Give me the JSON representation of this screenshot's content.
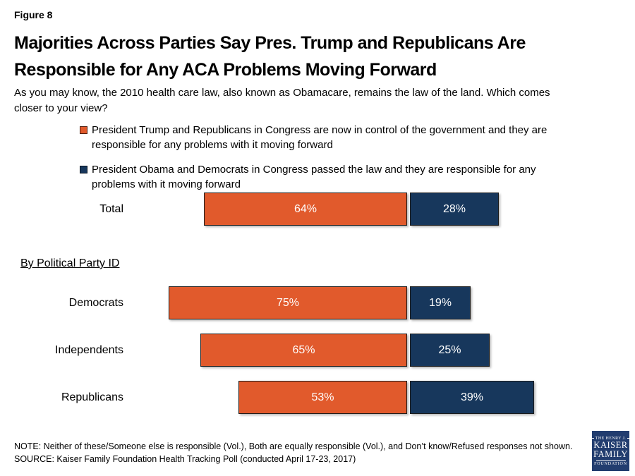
{
  "figure_label": "Figure 8",
  "title": "Majorities Across Parties Say Pres. Trump and Republicans Are Responsible for Any ACA Problems Moving Forward",
  "question": "As you may know, the 2010 health care law, also known as Obamacare, remains the law of the land. Which comes closer to your view?",
  "colors": {
    "trump_orange": "#E15A2C",
    "obama_navy": "#17375C",
    "logo_navy": "#223D6F",
    "bar_border": "#1C1C1C",
    "value_label": "#FFFFFF"
  },
  "legend": {
    "items": [
      {
        "key": "trump-republicans",
        "label": "President Trump and Republicans in Congress are now in control of the government and they are responsible for any problems with it moving forward",
        "color": "#E15A2C"
      },
      {
        "key": "obama-democrats",
        "label": "President Obama and Democrats in Congress passed the law and they are responsible for any problems with it moving forward",
        "color": "#17375C"
      }
    ]
  },
  "section_label": "By Political Party ID",
  "chart_data": {
    "type": "bar",
    "orientation": "horizontal",
    "title": "Majorities Across Parties Say Pres. Trump and Republicans Are Responsible for Any ACA Problems Moving Forward",
    "categories": [
      "Total",
      "Democrats",
      "Independents",
      "Republicans"
    ],
    "series": [
      {
        "key": "trump-republicans",
        "name": "President Trump and Republicans in Congress are responsible",
        "color": "#E15A2C",
        "values": [
          64,
          75,
          65,
          53
        ]
      },
      {
        "key": "obama-democrats",
        "name": "President Obama and Democrats in Congress are responsible",
        "color": "#17375C",
        "values": [
          28,
          19,
          25,
          39
        ]
      }
    ],
    "value_suffix": "%",
    "units": "percent of respondents",
    "legend_position": "top",
    "grid": false,
    "layout_note": "Bars anchored to a common vertical divider; first series extends left, second series extends right"
  },
  "note": "NOTE: Neither of these/Someone else is responsible (Vol.), Both are equally responsible (Vol.), and Don’t know/Refused responses not shown.",
  "source": "SOURCE: Kaiser Family Foundation Health Tracking Poll (conducted April 17-23, 2017)",
  "logo": {
    "top": "THE HENRY J.",
    "name_line1": "KAISER",
    "name_line2": "FAMILY",
    "bottom": "FOUNDATION"
  }
}
